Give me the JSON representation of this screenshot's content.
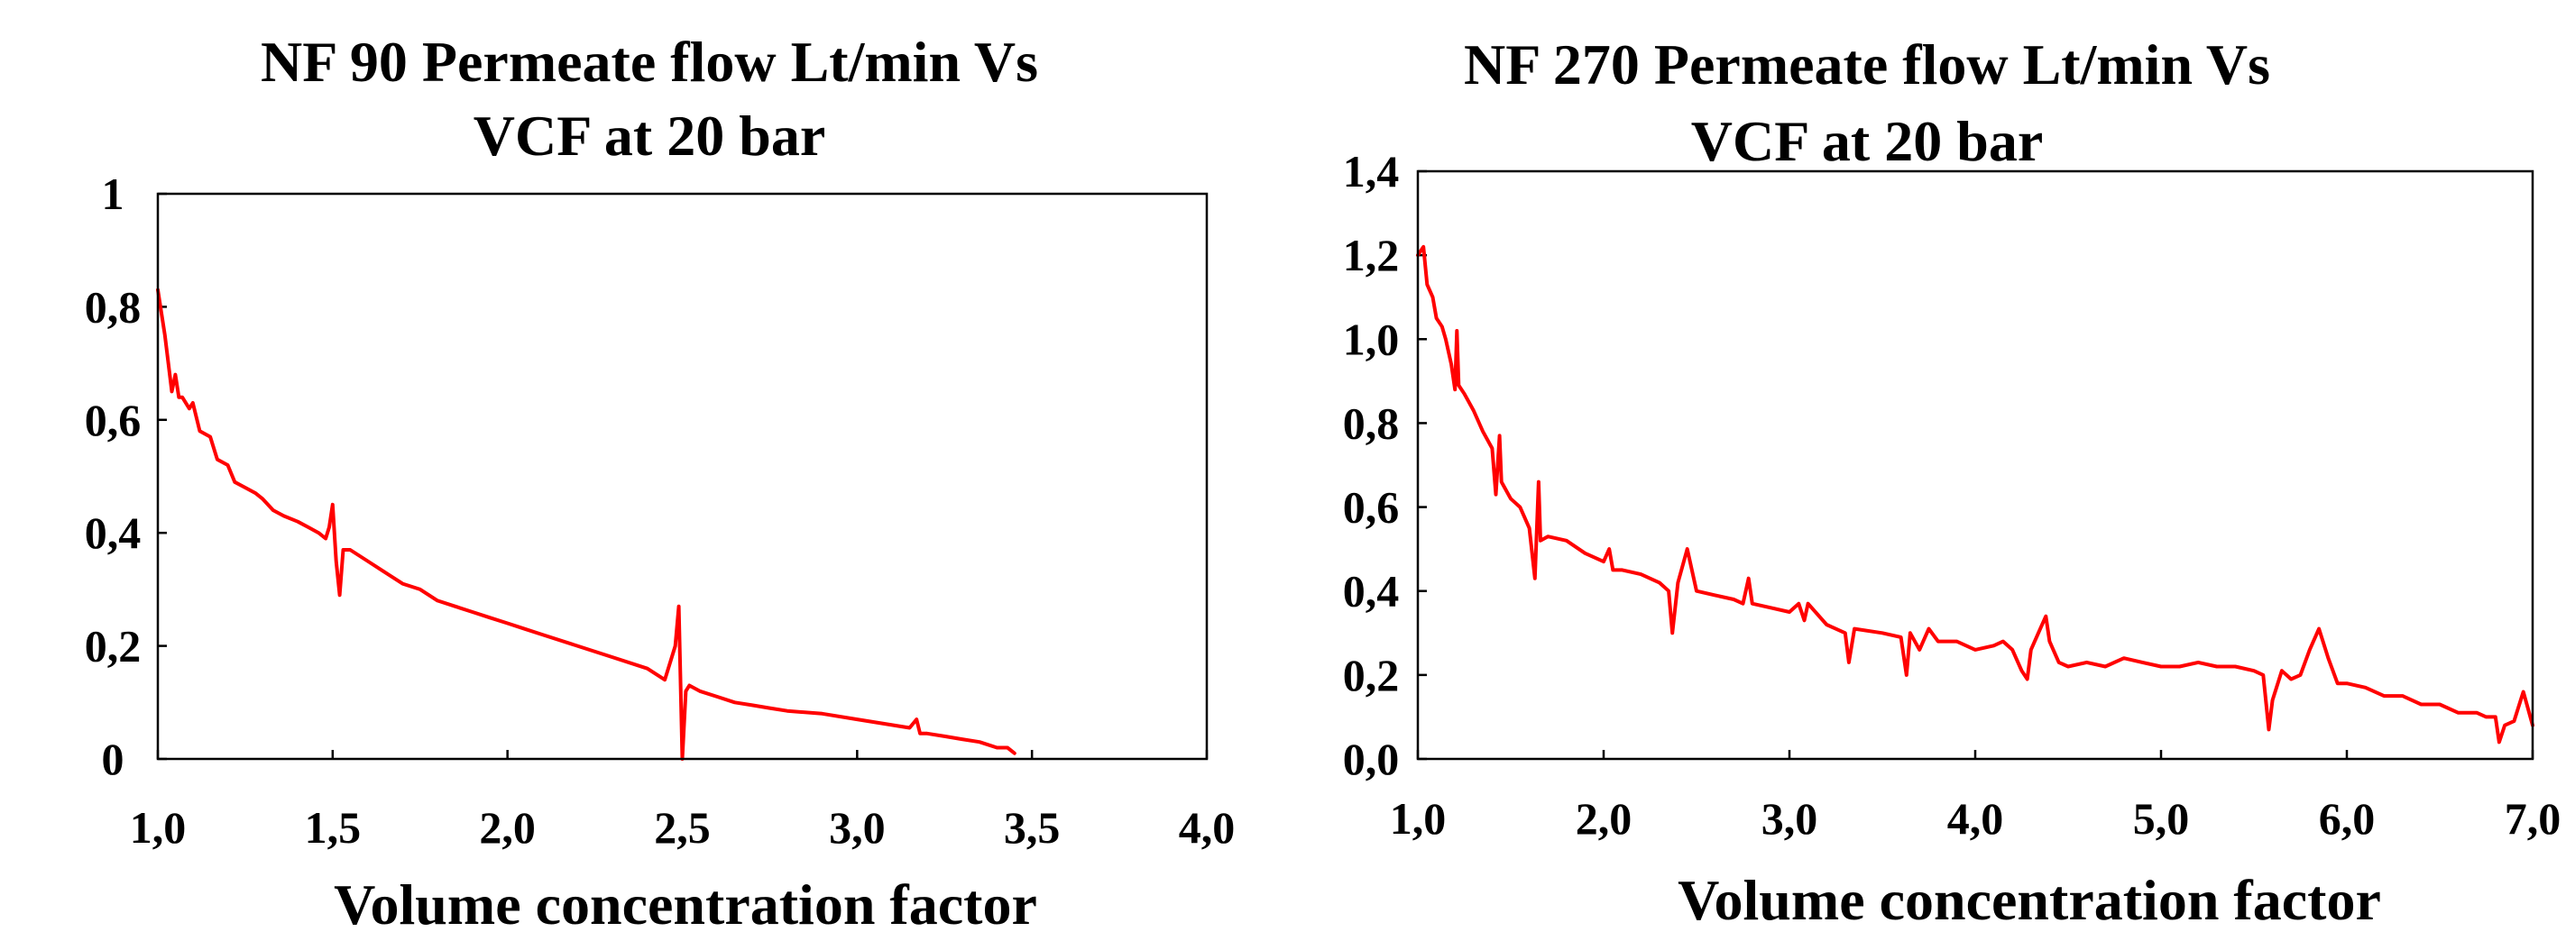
{
  "chart_data": [
    {
      "type": "line",
      "title": "NF 90 Permeate flow Lt/min Vs VCF at 20 bar",
      "title_lines": [
        "NF 90 Permeate flow Lt/min Vs",
        "VCF at 20 bar"
      ],
      "xlabel": "Volume concentration factor",
      "ylabel": "",
      "xlim": [
        1.0,
        4.0
      ],
      "ylim": [
        0,
        1
      ],
      "xticks": [
        1.0,
        1.5,
        2.0,
        2.5,
        3.0,
        3.5,
        4.0
      ],
      "xtick_labels": [
        "1,0",
        "1,5",
        "2,0",
        "2,5",
        "3,0",
        "3,5",
        "4,0"
      ],
      "yticks": [
        0,
        0.2,
        0.4,
        0.6,
        0.8,
        1
      ],
      "ytick_labels": [
        "0",
        "0,2",
        "0,4",
        "0,6",
        "0,8",
        "1"
      ],
      "grid": false,
      "color": "#ff0000",
      "series": [
        {
          "x": [
            1.0,
            1.02,
            1.04,
            1.05,
            1.06,
            1.07,
            1.09,
            1.1,
            1.12,
            1.15,
            1.17,
            1.2,
            1.22,
            1.25,
            1.28,
            1.3,
            1.33,
            1.36,
            1.4,
            1.43,
            1.46,
            1.48,
            1.49,
            1.5,
            1.51,
            1.52,
            1.53,
            1.55,
            1.6,
            1.65,
            1.7,
            1.75,
            1.8,
            1.85,
            1.9,
            1.95,
            2.0,
            2.05,
            2.1,
            2.2,
            2.3,
            2.4,
            2.45,
            2.48,
            2.49,
            2.5,
            2.51,
            2.52,
            2.55,
            2.6,
            2.65,
            2.7,
            2.75,
            2.8,
            2.9,
            3.0,
            3.1,
            3.15,
            3.17,
            3.18,
            3.2,
            3.25,
            3.3,
            3.35,
            3.4,
            3.43,
            3.45
          ],
          "y": [
            0.83,
            0.75,
            0.65,
            0.68,
            0.64,
            0.64,
            0.62,
            0.63,
            0.58,
            0.57,
            0.53,
            0.52,
            0.49,
            0.48,
            0.47,
            0.46,
            0.44,
            0.43,
            0.42,
            0.41,
            0.4,
            0.39,
            0.41,
            0.45,
            0.35,
            0.29,
            0.37,
            0.37,
            0.35,
            0.33,
            0.31,
            0.3,
            0.28,
            0.27,
            0.26,
            0.25,
            0.24,
            0.23,
            0.22,
            0.2,
            0.18,
            0.16,
            0.14,
            0.2,
            0.27,
            0.0,
            0.12,
            0.13,
            0.12,
            0.11,
            0.1,
            0.095,
            0.09,
            0.085,
            0.08,
            0.07,
            0.06,
            0.055,
            0.07,
            0.045,
            0.045,
            0.04,
            0.035,
            0.03,
            0.02,
            0.02,
            0.01
          ]
        }
      ]
    },
    {
      "type": "line",
      "title": "NF 270 Permeate flow Lt/min Vs VCF at 20 bar",
      "title_lines": [
        "NF 270 Permeate flow Lt/min Vs",
        "VCF at 20 bar"
      ],
      "xlabel": "Volume concentration factor",
      "ylabel": "",
      "xlim": [
        1.0,
        7.0
      ],
      "ylim": [
        0.0,
        1.4
      ],
      "xticks": [
        1.0,
        2.0,
        3.0,
        4.0,
        5.0,
        6.0,
        7.0
      ],
      "xtick_labels": [
        "1,0",
        "2,0",
        "3,0",
        "4,0",
        "5,0",
        "6,0",
        "7,0"
      ],
      "yticks": [
        0.0,
        0.2,
        0.4,
        0.6,
        0.8,
        1.0,
        1.2,
        1.4
      ],
      "ytick_labels": [
        "0,0",
        "0,2",
        "0,4",
        "0,6",
        "0,8",
        "1,0",
        "1,2",
        "1,4"
      ],
      "grid": false,
      "color": "#ff0000",
      "series": [
        {
          "x": [
            1.0,
            1.03,
            1.05,
            1.08,
            1.1,
            1.13,
            1.15,
            1.18,
            1.2,
            1.21,
            1.22,
            1.25,
            1.3,
            1.35,
            1.4,
            1.42,
            1.44,
            1.45,
            1.5,
            1.55,
            1.6,
            1.63,
            1.65,
            1.66,
            1.7,
            1.8,
            1.9,
            2.0,
            2.03,
            2.05,
            2.1,
            2.2,
            2.3,
            2.35,
            2.37,
            2.4,
            2.45,
            2.5,
            2.6,
            2.7,
            2.75,
            2.78,
            2.8,
            2.9,
            3.0,
            3.05,
            3.08,
            3.1,
            3.2,
            3.3,
            3.32,
            3.35,
            3.5,
            3.6,
            3.63,
            3.65,
            3.7,
            3.75,
            3.8,
            3.9,
            4.0,
            4.1,
            4.15,
            4.2,
            4.25,
            4.28,
            4.3,
            4.35,
            4.38,
            4.4,
            4.45,
            4.5,
            4.6,
            4.7,
            4.8,
            4.9,
            5.0,
            5.1,
            5.2,
            5.3,
            5.4,
            5.5,
            5.55,
            5.58,
            5.6,
            5.65,
            5.7,
            5.75,
            5.8,
            5.85,
            5.9,
            5.95,
            6.0,
            6.1,
            6.2,
            6.3,
            6.4,
            6.5,
            6.6,
            6.7,
            6.75,
            6.8,
            6.82,
            6.85,
            6.9,
            6.95,
            7.0
          ],
          "y": [
            1.2,
            1.22,
            1.13,
            1.1,
            1.05,
            1.03,
            1.0,
            0.94,
            0.88,
            1.02,
            0.89,
            0.87,
            0.83,
            0.78,
            0.74,
            0.63,
            0.77,
            0.66,
            0.62,
            0.6,
            0.55,
            0.43,
            0.66,
            0.52,
            0.53,
            0.52,
            0.49,
            0.47,
            0.5,
            0.45,
            0.45,
            0.44,
            0.42,
            0.4,
            0.3,
            0.42,
            0.5,
            0.4,
            0.39,
            0.38,
            0.37,
            0.43,
            0.37,
            0.36,
            0.35,
            0.37,
            0.33,
            0.37,
            0.32,
            0.3,
            0.23,
            0.31,
            0.3,
            0.29,
            0.2,
            0.3,
            0.26,
            0.31,
            0.28,
            0.28,
            0.26,
            0.27,
            0.28,
            0.26,
            0.21,
            0.19,
            0.26,
            0.31,
            0.34,
            0.28,
            0.23,
            0.22,
            0.23,
            0.22,
            0.24,
            0.23,
            0.22,
            0.22,
            0.23,
            0.22,
            0.22,
            0.21,
            0.2,
            0.07,
            0.14,
            0.21,
            0.19,
            0.2,
            0.26,
            0.31,
            0.24,
            0.18,
            0.18,
            0.17,
            0.15,
            0.15,
            0.13,
            0.13,
            0.11,
            0.11,
            0.1,
            0.1,
            0.04,
            0.08,
            0.09,
            0.16,
            0.08
          ]
        }
      ]
    }
  ]
}
